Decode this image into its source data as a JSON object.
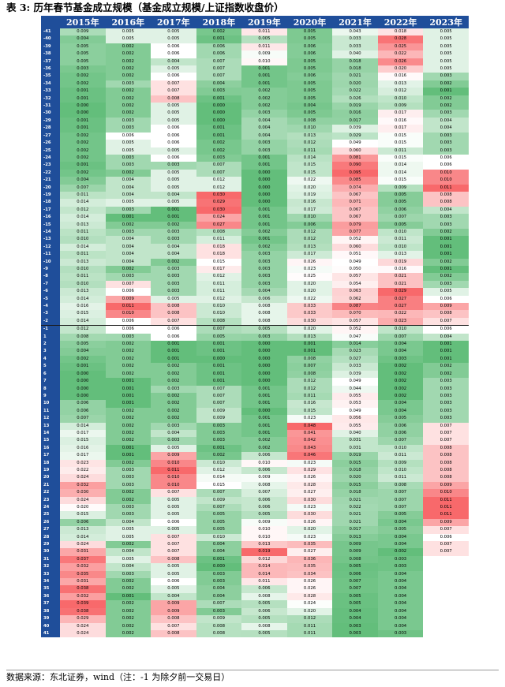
{
  "title": "表 3: 历年春节基金成立规模（基金成立规模/上证指数收盘价）",
  "source": "数据来源：东北证券，wind（注：-1 为除夕前一交易日）",
  "years": [
    "2015年",
    "2016年",
    "2017年",
    "2018年",
    "2019年",
    "2020年",
    "2021年",
    "2022年",
    "2023年"
  ],
  "rows": [
    {
      "label": "-41",
      "values": [
        0.009,
        0.005,
        0.005,
        0.002,
        0.011,
        0.005,
        0.043,
        0.018,
        0.005
      ]
    },
    {
      "label": "-40",
      "values": [
        0.004,
        0.005,
        0.005,
        0.001,
        0.005,
        0.005,
        0.033,
        0.028,
        0.005
      ]
    },
    {
      "label": "-39",
      "values": [
        0.005,
        0.002,
        0.006,
        0.006,
        0.011,
        0.006,
        0.033,
        0.025,
        0.005
      ]
    },
    {
      "label": "-38",
      "values": [
        0.005,
        0.002,
        0.006,
        0.006,
        0.009,
        0.006,
        0.04,
        0.022,
        0.005
      ]
    },
    {
      "label": "-37",
      "values": [
        0.005,
        0.002,
        0.004,
        0.007,
        0.01,
        0.005,
        0.018,
        0.026,
        0.005
      ]
    },
    {
      "label": "-36",
      "values": [
        0.003,
        0.002,
        0.005,
        0.007,
        0.001,
        0.005,
        0.018,
        0.02,
        0.005
      ]
    },
    {
      "label": "-35",
      "values": [
        0.002,
        0.002,
        0.006,
        0.007,
        0.001,
        0.006,
        0.021,
        0.016,
        0.003
      ]
    },
    {
      "label": "-34",
      "values": [
        0.002,
        0.003,
        0.007,
        0.004,
        0.001,
        0.005,
        0.02,
        0.013,
        0.002
      ]
    },
    {
      "label": "-33",
      "values": [
        0.001,
        0.002,
        0.007,
        0.003,
        0.002,
        0.005,
        0.022,
        0.012,
        0.001
      ]
    },
    {
      "label": "-32",
      "values": [
        0.001,
        0.002,
        0.008,
        0.001,
        0.002,
        0.005,
        0.026,
        0.01,
        0.002
      ]
    },
    {
      "label": "-31",
      "values": [
        0.0,
        0.002,
        0.005,
        0.0,
        0.002,
        0.004,
        0.019,
        0.009,
        0.002
      ]
    },
    {
      "label": "-30",
      "values": [
        0.0,
        0.002,
        0.005,
        0.0,
        0.003,
        0.005,
        0.016,
        0.017,
        0.003
      ]
    },
    {
      "label": "-29",
      "values": [
        0.001,
        0.003,
        0.005,
        0.0,
        0.004,
        0.008,
        0.017,
        0.016,
        0.004
      ]
    },
    {
      "label": "-28",
      "values": [
        0.001,
        0.003,
        0.006,
        0.001,
        0.004,
        0.01,
        0.039,
        0.017,
        0.004
      ]
    },
    {
      "label": "-27",
      "values": [
        0.002,
        0.006,
        0.006,
        0.001,
        0.004,
        0.013,
        0.029,
        0.015,
        0.003
      ]
    },
    {
      "label": "-26",
      "values": [
        0.002,
        0.005,
        0.006,
        0.002,
        0.003,
        0.012,
        0.049,
        0.015,
        0.003
      ]
    },
    {
      "label": "-25",
      "values": [
        0.002,
        0.005,
        0.005,
        0.002,
        0.003,
        0.011,
        0.06,
        0.011,
        0.003
      ]
    },
    {
      "label": "-24",
      "values": [
        0.002,
        0.003,
        0.006,
        0.003,
        0.001,
        0.014,
        0.081,
        0.015,
        0.006
      ]
    },
    {
      "label": "-23",
      "values": [
        0.001,
        0.003,
        0.003,
        0.007,
        0.001,
        0.015,
        0.09,
        0.014,
        0.006
      ]
    },
    {
      "label": "-22",
      "values": [
        0.002,
        0.002,
        0.005,
        0.007,
        0.0,
        0.015,
        0.095,
        0.014,
        0.01
      ]
    },
    {
      "label": "-21",
      "values": [
        0.004,
        0.004,
        0.005,
        0.012,
        0.0,
        0.022,
        0.085,
        0.015,
        0.01
      ]
    },
    {
      "label": "-20",
      "values": [
        0.007,
        0.004,
        0.005,
        0.012,
        0.0,
        0.02,
        0.074,
        0.009,
        0.011
      ]
    },
    {
      "label": "-19",
      "values": [
        0.011,
        0.004,
        0.004,
        0.03,
        0.0,
        0.019,
        0.067,
        0.005,
        0.008
      ]
    },
    {
      "label": "-18",
      "values": [
        0.014,
        0.005,
        0.005,
        0.029,
        0.0,
        0.016,
        0.071,
        0.005,
        0.008
      ]
    },
    {
      "label": "-17",
      "values": [
        0.012,
        0.003,
        0.001,
        0.03,
        0.001,
        0.017,
        0.067,
        0.006,
        0.004
      ]
    },
    {
      "label": "-16",
      "values": [
        0.014,
        0.001,
        0.001,
        0.024,
        0.001,
        0.01,
        0.067,
        0.007,
        0.003
      ]
    },
    {
      "label": "-15",
      "values": [
        0.013,
        0.002,
        0.002,
        0.027,
        0.001,
        0.006,
        0.079,
        0.005,
        0.003
      ]
    },
    {
      "label": "-14",
      "values": [
        0.011,
        0.003,
        0.003,
        0.008,
        0.002,
        0.012,
        0.077,
        0.01,
        0.002
      ]
    },
    {
      "label": "-13",
      "values": [
        0.01,
        0.004,
        0.003,
        0.011,
        0.001,
        0.012,
        0.052,
        0.011,
        0.001
      ]
    },
    {
      "label": "-12",
      "values": [
        0.014,
        0.004,
        0.004,
        0.018,
        0.002,
        0.013,
        0.06,
        0.01,
        0.001
      ]
    },
    {
      "label": "-11",
      "values": [
        0.011,
        0.004,
        0.004,
        0.018,
        0.003,
        0.017,
        0.051,
        0.013,
        0.001
      ]
    },
    {
      "label": "-10",
      "values": [
        0.013,
        0.004,
        0.002,
        0.015,
        0.003,
        0.026,
        0.049,
        0.019,
        0.002
      ]
    },
    {
      "label": "-9",
      "values": [
        0.01,
        0.002,
        0.003,
        0.017,
        0.003,
        0.023,
        0.05,
        0.016,
        0.001
      ]
    },
    {
      "label": "-8",
      "values": [
        0.011,
        0.003,
        0.003,
        0.012,
        0.003,
        0.025,
        0.057,
        0.021,
        0.002
      ]
    },
    {
      "label": "-7",
      "values": [
        0.01,
        0.007,
        0.003,
        0.011,
        0.003,
        0.02,
        0.054,
        0.021,
        0.003
      ]
    },
    {
      "label": "-6",
      "values": [
        0.013,
        0.006,
        0.003,
        0.011,
        0.004,
        0.02,
        0.063,
        0.029,
        0.005
      ]
    },
    {
      "label": "-5",
      "values": [
        0.014,
        0.009,
        0.005,
        0.012,
        0.006,
        0.022,
        0.062,
        0.027,
        0.006
      ]
    },
    {
      "label": "-4",
      "values": [
        0.016,
        0.011,
        0.008,
        0.01,
        0.008,
        0.033,
        0.087,
        0.027,
        0.009
      ]
    },
    {
      "label": "-3",
      "values": [
        0.015,
        0.01,
        0.008,
        0.01,
        0.008,
        0.033,
        0.07,
        0.022,
        0.008
      ]
    },
    {
      "label": "-2",
      "values": [
        0.014,
        0.006,
        0.007,
        0.008,
        0.008,
        0.03,
        0.057,
        0.023,
        0.007
      ]
    },
    {
      "label": "-1",
      "values": [
        0.012,
        0.006,
        0.006,
        0.007,
        0.005,
        0.02,
        0.052,
        0.01,
        0.006
      ]
    },
    {
      "label": "1",
      "values": [
        0.008,
        0.003,
        0.006,
        0.005,
        0.003,
        0.013,
        0.047,
        0.007,
        0.004
      ]
    },
    {
      "label": "2",
      "values": [
        0.005,
        0.002,
        0.001,
        0.001,
        0.0,
        0.001,
        0.014,
        0.004,
        0.001
      ]
    },
    {
      "label": "3",
      "values": [
        0.004,
        0.002,
        0.001,
        0.001,
        0.0,
        0.001,
        0.023,
        0.004,
        0.001
      ]
    },
    {
      "label": "4",
      "values": [
        0.002,
        0.002,
        0.001,
        0.0,
        0.0,
        0.008,
        0.027,
        0.003,
        0.001
      ]
    },
    {
      "label": "5",
      "values": [
        0.001,
        0.002,
        0.002,
        0.001,
        0.0,
        0.007,
        0.033,
        0.002,
        0.002
      ]
    },
    {
      "label": "6",
      "values": [
        0.0,
        0.002,
        0.002,
        0.001,
        0.0,
        0.008,
        0.039,
        0.002,
        0.002
      ]
    },
    {
      "label": "7",
      "values": [
        0.0,
        0.001,
        0.002,
        0.001,
        0.0,
        0.012,
        0.049,
        0.002,
        0.003
      ]
    },
    {
      "label": "8",
      "values": [
        0.0,
        0.001,
        0.003,
        0.007,
        0.001,
        0.012,
        0.044,
        0.002,
        0.003
      ]
    },
    {
      "label": "9",
      "values": [
        0.0,
        0.001,
        0.002,
        0.007,
        0.001,
        0.011,
        0.055,
        0.002,
        0.003
      ]
    },
    {
      "label": "10",
      "values": [
        0.006,
        0.001,
        0.002,
        0.007,
        0.001,
        0.016,
        0.053,
        0.004,
        0.003
      ]
    },
    {
      "label": "11",
      "values": [
        0.006,
        0.002,
        0.002,
        0.009,
        0.0,
        0.015,
        0.049,
        0.004,
        0.003
      ]
    },
    {
      "label": "12",
      "values": [
        0.007,
        0.002,
        0.002,
        0.009,
        0.001,
        0.023,
        0.056,
        0.005,
        0.003
      ]
    },
    {
      "label": "13",
      "values": [
        0.014,
        0.002,
        0.003,
        0.003,
        0.001,
        0.048,
        0.055,
        0.006,
        0.007
      ]
    },
    {
      "label": "14",
      "values": [
        0.017,
        0.002,
        0.004,
        0.003,
        0.001,
        0.041,
        0.04,
        0.006,
        0.007
      ]
    },
    {
      "label": "15",
      "values": [
        0.015,
        0.002,
        0.003,
        0.003,
        0.002,
        0.042,
        0.031,
        0.007,
        0.007
      ]
    },
    {
      "label": "16",
      "values": [
        0.016,
        0.001,
        0.005,
        0.001,
        0.002,
        0.043,
        0.031,
        0.01,
        0.008
      ]
    },
    {
      "label": "17",
      "values": [
        0.017,
        0.001,
        0.009,
        0.002,
        0.006,
        0.046,
        0.019,
        0.011,
        0.008
      ]
    },
    {
      "label": "18",
      "values": [
        0.023,
        0.002,
        0.01,
        0.01,
        0.01,
        0.023,
        0.015,
        0.009,
        0.008
      ]
    },
    {
      "label": "19",
      "values": [
        0.022,
        0.003,
        0.011,
        0.012,
        0.006,
        0.029,
        0.018,
        0.01,
        0.008
      ]
    },
    {
      "label": "20",
      "values": [
        0.024,
        0.003,
        0.01,
        0.014,
        0.009,
        0.026,
        0.02,
        0.011,
        0.008
      ]
    },
    {
      "label": "21",
      "values": [
        0.032,
        0.003,
        0.01,
        0.015,
        0.008,
        0.028,
        0.015,
        0.008,
        0.009
      ]
    },
    {
      "label": "22",
      "values": [
        0.03,
        0.002,
        0.007,
        0.007,
        0.007,
        0.027,
        0.018,
        0.007,
        0.01
      ]
    },
    {
      "label": "23",
      "values": [
        0.024,
        0.002,
        0.005,
        0.009,
        0.006,
        0.03,
        0.021,
        0.007,
        0.011
      ]
    },
    {
      "label": "24",
      "values": [
        0.02,
        0.003,
        0.005,
        0.007,
        0.006,
        0.023,
        0.022,
        0.007,
        0.011
      ]
    },
    {
      "label": "25",
      "values": [
        0.015,
        0.003,
        0.005,
        0.005,
        0.005,
        0.03,
        0.021,
        0.005,
        0.011
      ]
    },
    {
      "label": "26",
      "values": [
        0.006,
        0.004,
        0.006,
        0.005,
        0.009,
        0.026,
        0.021,
        0.004,
        0.009
      ]
    },
    {
      "label": "27",
      "values": [
        0.013,
        0.005,
        0.005,
        0.005,
        0.01,
        0.02,
        0.017,
        0.005,
        0.007
      ]
    },
    {
      "label": "28",
      "values": [
        0.014,
        0.005,
        0.007,
        0.01,
        0.01,
        0.023,
        0.013,
        0.004,
        0.006
      ]
    },
    {
      "label": "29",
      "values": [
        0.024,
        0.002,
        0.007,
        0.004,
        0.013,
        0.035,
        0.009,
        0.004,
        0.007
      ]
    },
    {
      "label": "30",
      "values": [
        0.031,
        0.004,
        0.007,
        0.004,
        0.019,
        0.027,
        0.009,
        0.002,
        0.007
      ]
    },
    {
      "label": "31",
      "values": [
        0.037,
        0.005,
        0.008,
        0.001,
        0.012,
        0.036,
        0.008,
        0.003,
        null
      ]
    },
    {
      "label": "32",
      "values": [
        0.032,
        0.004,
        0.005,
        0.0,
        0.014,
        0.035,
        0.005,
        0.003,
        null
      ]
    },
    {
      "label": "33",
      "values": [
        0.035,
        0.003,
        0.005,
        0.003,
        0.014,
        0.034,
        0.006,
        0.004,
        null
      ]
    },
    {
      "label": "34",
      "values": [
        0.031,
        0.002,
        0.006,
        0.003,
        0.011,
        0.026,
        0.007,
        0.004,
        null
      ]
    },
    {
      "label": "35",
      "values": [
        0.038,
        0.002,
        0.005,
        0.004,
        0.006,
        0.026,
        0.007,
        0.004,
        null
      ]
    },
    {
      "label": "36",
      "values": [
        0.032,
        0.001,
        0.004,
        0.004,
        0.008,
        0.028,
        0.005,
        0.004,
        null
      ]
    },
    {
      "label": "37",
      "values": [
        0.039,
        0.002,
        0.009,
        0.007,
        0.005,
        0.024,
        0.005,
        0.004,
        null
      ]
    },
    {
      "label": "38",
      "values": [
        0.038,
        0.002,
        0.009,
        0.003,
        0.006,
        0.02,
        0.004,
        0.004,
        null
      ]
    },
    {
      "label": "39",
      "values": [
        0.029,
        0.002,
        0.008,
        0.009,
        0.005,
        0.012,
        0.004,
        0.004,
        null
      ]
    },
    {
      "label": "40",
      "values": [
        0.024,
        0.002,
        0.007,
        0.008,
        0.008,
        0.011,
        0.003,
        0.004,
        null
      ]
    },
    {
      "label": "41",
      "values": [
        0.024,
        0.002,
        0.008,
        0.008,
        0.005,
        0.011,
        0.003,
        0.003,
        null
      ]
    }
  ],
  "separator_after_label": "-2",
  "colors": {
    "header_bg": "#1f4e9a",
    "header_text": "#ffffff",
    "low": "#63be7b",
    "mid": "#ffffff",
    "high": "#f8696b"
  }
}
